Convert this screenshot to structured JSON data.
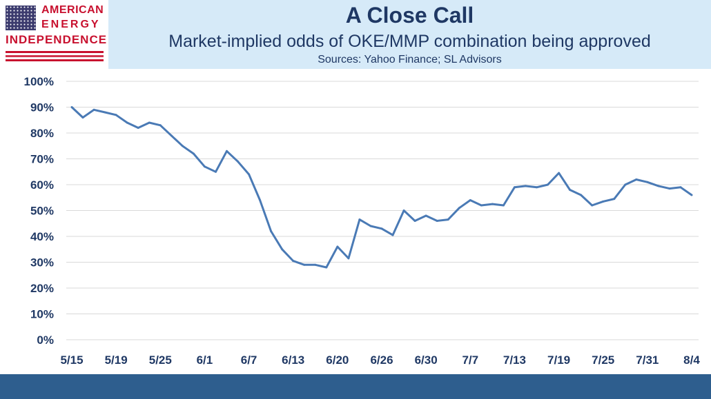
{
  "logo": {
    "line1": "AMERICAN",
    "line2": "ENERGY",
    "line3": "INDEPENDENCE"
  },
  "colors": {
    "header_bg": "#d6eaf8",
    "title": "#1f3864",
    "line": "#4a7ab5",
    "footer": "#2e5e8e",
    "logo_red": "#c8102e",
    "logo_blue": "#3c3b6e"
  },
  "chart_data": {
    "type": "line",
    "title": "A Close Call",
    "subtitle": "Market-implied odds of OKE/MMP combination being approved",
    "source": "Sources: Yahoo Finance; SL Advisors",
    "xlabel": "",
    "ylabel": "",
    "ylim": [
      0,
      100
    ],
    "y_ticks": [
      0,
      10,
      20,
      30,
      40,
      50,
      60,
      70,
      80,
      90,
      100
    ],
    "y_tick_labels": [
      "0%",
      "10%",
      "20%",
      "30%",
      "40%",
      "50%",
      "60%",
      "70%",
      "80%",
      "90%",
      "100%"
    ],
    "x_tick_labels": [
      "5/15",
      "5/19",
      "5/25",
      "6/1",
      "6/7",
      "6/13",
      "6/20",
      "6/26",
      "6/30",
      "7/7",
      "7/13",
      "7/19",
      "7/25",
      "7/31",
      "8/4"
    ],
    "grid": "horizontal",
    "legend": "none",
    "series": [
      {
        "values": [
          90,
          86,
          89,
          88,
          87,
          84,
          82,
          84,
          83,
          79,
          75,
          72,
          67,
          65,
          73,
          69,
          64,
          54,
          42,
          35,
          30.5,
          29,
          29,
          28,
          36,
          31.5,
          46.5,
          44,
          43,
          40.5,
          50,
          46,
          48,
          46,
          46.5,
          51,
          54,
          52,
          52.5,
          52,
          59,
          59.5,
          59,
          60,
          64.5,
          58,
          56,
          52,
          53.5,
          54.5,
          60,
          62,
          61,
          59.5,
          58.5,
          59,
          56
        ]
      }
    ]
  }
}
